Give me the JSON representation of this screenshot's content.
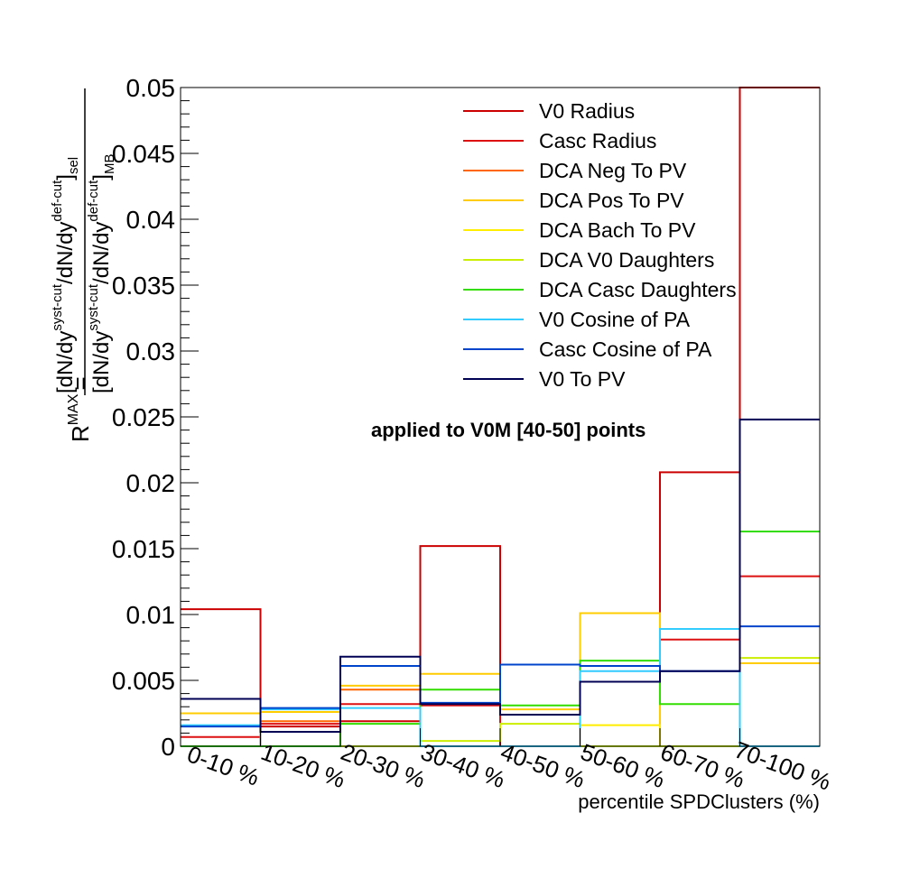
{
  "chart_data": {
    "type": "step",
    "categories": [
      "0-10 %",
      "10-20 %",
      "20-30 %",
      "30-40 %",
      "40-50 %",
      "50-60 %",
      "60-70 %",
      "70-100 %"
    ],
    "xlabel": "percentile SPDClusters (%)",
    "ylabel": {
      "lhs": "R",
      "lhs_sup": "MAX",
      "eq": "=",
      "num_main": "[dN/dy",
      "num_sup1": "syst-cut",
      "num_mid": "/dN/dy",
      "num_sup2": "def-cut",
      "num_close": "]",
      "num_sub": "sel",
      "den_main": "[dN/dy",
      "den_sup1": "syst-cut",
      "den_mid": "/dN/dy",
      "den_sup2": "def-cut",
      "den_close": "]",
      "den_sub": "MB"
    },
    "ylim": [
      0,
      0.05
    ],
    "yticks": [
      "0",
      "0.005",
      "0.01",
      "0.015",
      "0.02",
      "0.025",
      "0.03",
      "0.035",
      "0.04",
      "0.045",
      "0.05"
    ],
    "annotation": "applied to V0M [40-50] points",
    "legend_position": "top-right",
    "series": [
      {
        "name": "V0 Radius",
        "color": "#cc0000",
        "values": [
          0.0104,
          0.0015,
          0.0019,
          0.0152,
          0.0,
          0.0,
          0.0208,
          0.05
        ]
      },
      {
        "name": "Casc Radius",
        "color": "#dd1111",
        "values": [
          0.0007,
          0.0017,
          0.0032,
          0.0031,
          0.0,
          0.0,
          0.0081,
          0.0129
        ]
      },
      {
        "name": "DCA Neg To PV",
        "color": "#ff6600",
        "values": [
          0.0,
          0.0019,
          0.0043,
          0.0,
          0.0,
          0.0,
          0.0,
          0.0
        ]
      },
      {
        "name": "DCA Pos To PV",
        "color": "#ffcc00",
        "values": [
          0.0025,
          0.0026,
          0.0046,
          0.0055,
          0.0028,
          0.0101,
          0.0,
          0.0063
        ]
      },
      {
        "name": "DCA Bach To PV",
        "color": "#ffee00",
        "values": [
          0.0,
          0.0,
          0.0,
          0.0,
          0.0,
          0.0016,
          0.0,
          0.0
        ]
      },
      {
        "name": "DCA V0 Daughters",
        "color": "#ccee00",
        "values": [
          0.0,
          0.0,
          0.0,
          0.0004,
          0.0017,
          0.0,
          0.0,
          0.0067
        ]
      },
      {
        "name": "DCA Casc Daughters",
        "color": "#33dd00",
        "values": [
          0.0,
          0.0,
          0.0017,
          0.0043,
          0.0031,
          0.0065,
          0.0032,
          0.0163
        ]
      },
      {
        "name": "V0 Cosine of PA",
        "color": "#33ccff",
        "values": [
          0.0016,
          0.0028,
          0.0029,
          0.0,
          0.0,
          0.0057,
          0.0089,
          0.0
        ]
      },
      {
        "name": "Casc Cosine of PA",
        "color": "#0044cc",
        "values": [
          0.0015,
          0.0029,
          0.0061,
          0.0033,
          0.0062,
          0.0061,
          0.0057,
          0.0091
        ]
      },
      {
        "name": "V0 To PV",
        "color": "#000055",
        "values": [
          0.0036,
          0.0011,
          0.0068,
          0.0032,
          0.0024,
          0.0049,
          0.0057,
          0.0248
        ]
      }
    ]
  }
}
